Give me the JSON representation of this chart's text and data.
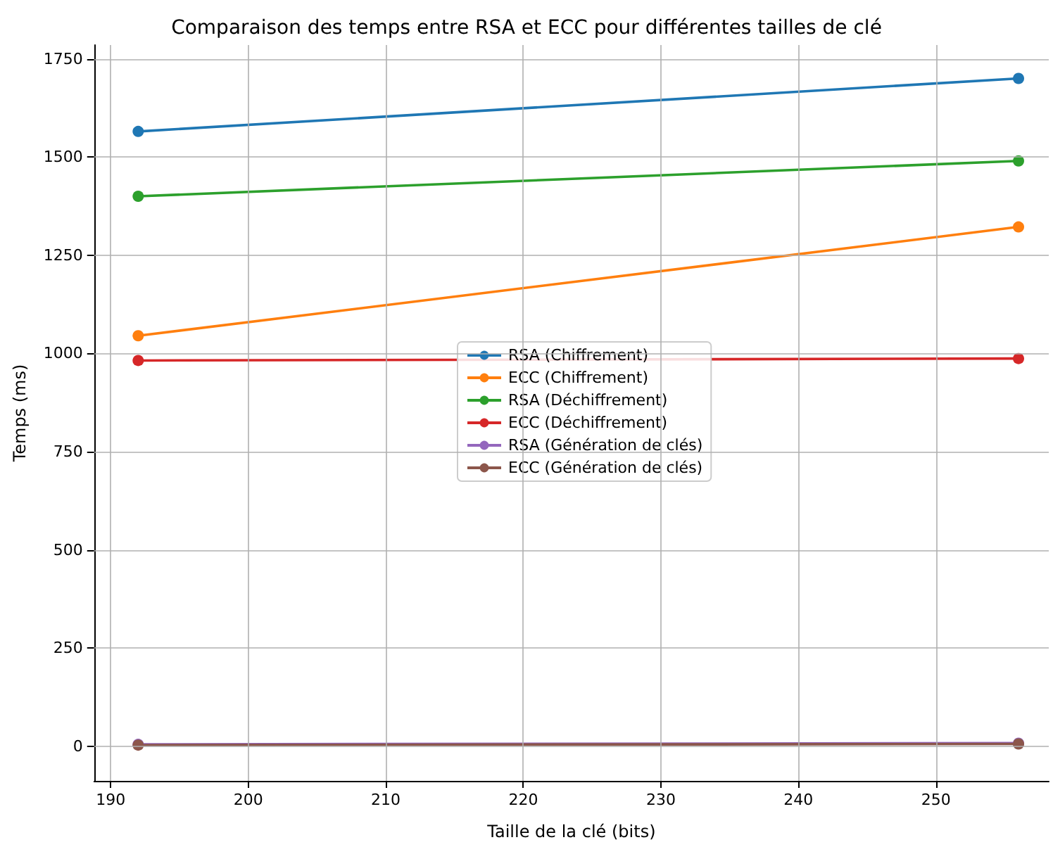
{
  "chart_data": {
    "type": "line",
    "title": "Comparaison des temps entre RSA et ECC pour différentes tailles de clé",
    "xlabel": "Taille de la clé (bits)",
    "ylabel": "Temps (ms)",
    "x": [
      192,
      256
    ],
    "series": [
      {
        "name": "RSA (Chiffrement)",
        "color": "#1f77b4",
        "values": [
          1565,
          1700
        ]
      },
      {
        "name": "ECC (Chiffrement)",
        "color": "#ff7f0e",
        "values": [
          1045,
          1322
        ]
      },
      {
        "name": "RSA (Déchiffrement)",
        "color": "#2ca02c",
        "values": [
          1400,
          1490
        ]
      },
      {
        "name": "ECC (Déchiffrement)",
        "color": "#d62728",
        "values": [
          982,
          987
        ]
      },
      {
        "name": "RSA (Génération de clés)",
        "color": "#9467bd",
        "values": [
          5,
          8
        ]
      },
      {
        "name": "ECC (Génération de clés)",
        "color": "#8c564b",
        "values": [
          3,
          6
        ]
      }
    ],
    "xlim": [
      188.8,
      258.2
    ],
    "xticks": [
      190,
      200,
      210,
      220,
      230,
      240,
      250
    ],
    "ylim": [
      -88,
      1785
    ],
    "yticks": [
      0,
      250,
      500,
      750,
      1000,
      1250,
      1500,
      1750
    ],
    "grid": true,
    "legend": "center",
    "marker": "circle",
    "line_style": "solid"
  }
}
